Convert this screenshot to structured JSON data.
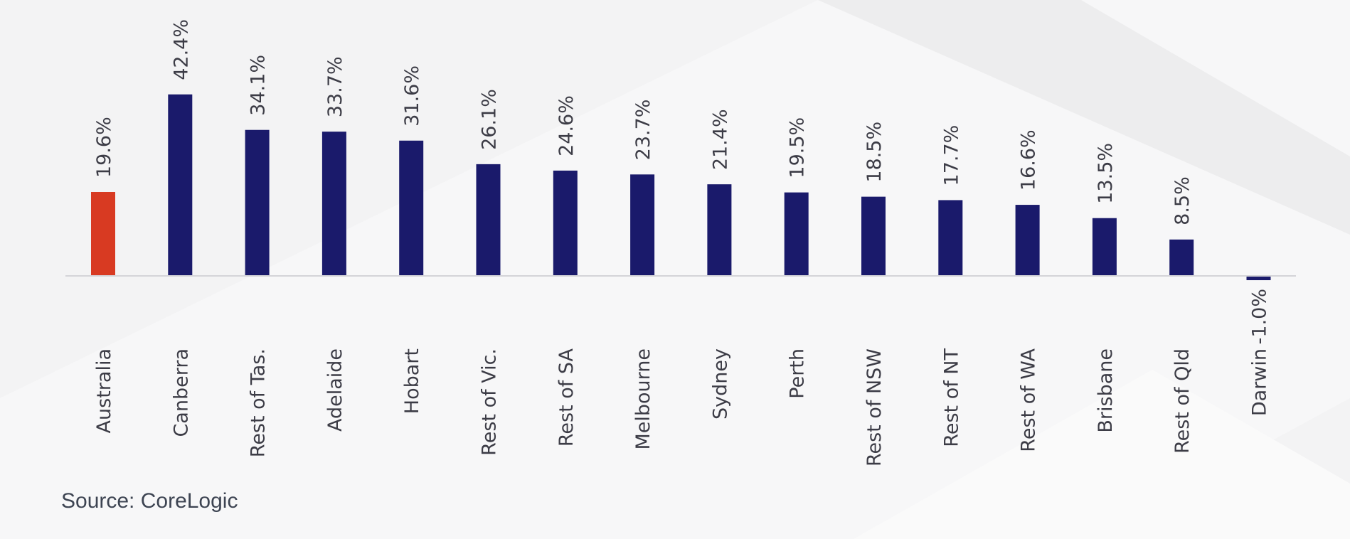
{
  "chart_data": {
    "type": "bar",
    "categories": [
      "Australia",
      "Canberra",
      "Rest of Tas.",
      "Adelaide",
      "Hobart",
      "Rest of Vic.",
      "Rest of SA",
      "Melbourne",
      "Sydney",
      "Perth",
      "Rest of NSW",
      "Rest of NT",
      "Rest of WA",
      "Brisbane",
      "Rest of Qld",
      "Darwin"
    ],
    "values": [
      19.6,
      42.4,
      34.1,
      33.7,
      31.6,
      26.1,
      24.6,
      23.7,
      21.4,
      19.5,
      18.5,
      17.7,
      16.6,
      13.5,
      8.5,
      -1.0
    ],
    "value_labels": [
      "19.6%",
      "42.4%",
      "34.1%",
      "33.7%",
      "31.6%",
      "26.1%",
      "24.6%",
      "23.7%",
      "21.4%",
      "19.5%",
      "18.5%",
      "17.7%",
      "16.6%",
      "13.5%",
      "8.5%",
      "-1.0%"
    ],
    "title": "",
    "xlabel": "",
    "ylabel": "",
    "legend": "none",
    "grid": false,
    "colors": {
      "highlight": "#d83a22",
      "default": "#1a1a6b",
      "axis": "#d4d4d8",
      "text": "#3c3c46"
    },
    "highlight_category": "Australia"
  },
  "source": "Source: CoreLogic"
}
